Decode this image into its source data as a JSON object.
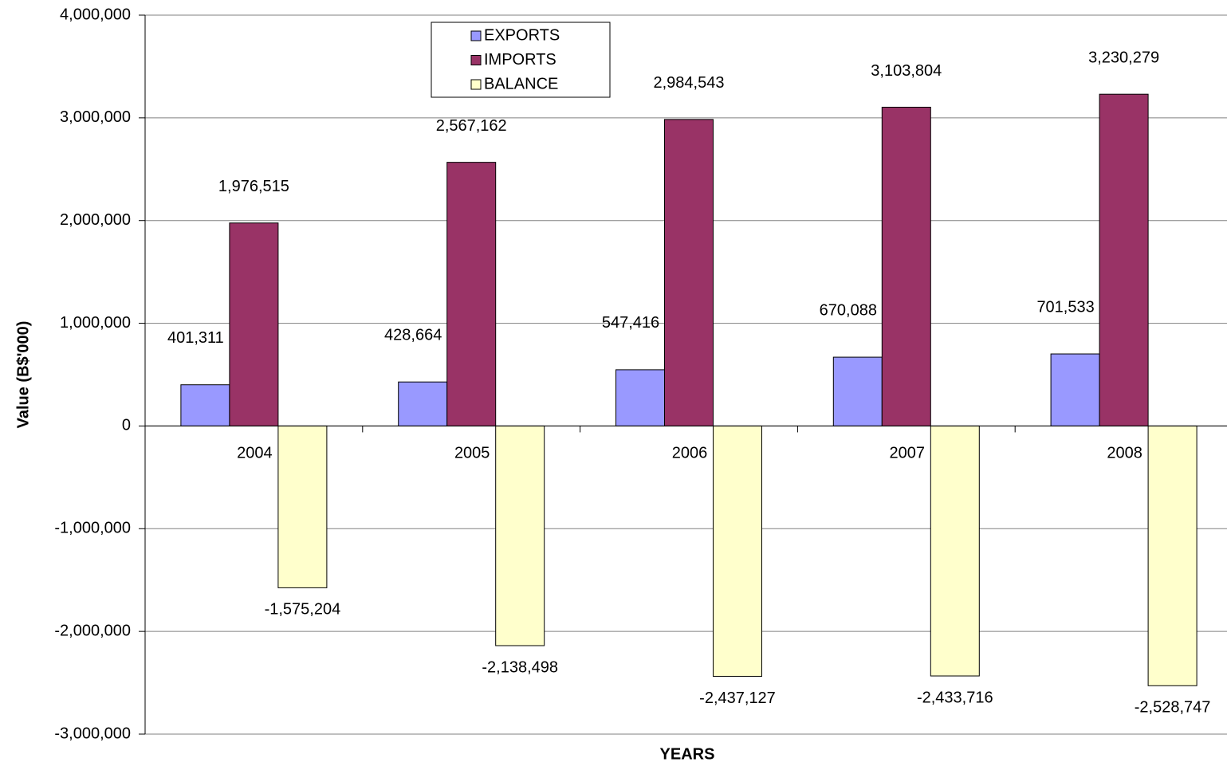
{
  "chart_data": {
    "type": "bar",
    "categories": [
      "2004",
      "2005",
      "2006",
      "2007",
      "2008"
    ],
    "series": [
      {
        "name": "EXPORTS",
        "color": "#9999ff",
        "values": [
          401311,
          428664,
          547416,
          670088,
          701533
        ],
        "value_labels": [
          "401,311",
          "428,664",
          "547,416",
          "670,088",
          "701,533"
        ]
      },
      {
        "name": "IMPORTS",
        "color": "#993366",
        "values": [
          1976515,
          2567162,
          2984543,
          3103804,
          3230279
        ],
        "value_labels": [
          "1,976,515",
          "2,567,162",
          "2,984,543",
          "3,103,804",
          "3,230,279"
        ]
      },
      {
        "name": "BALANCE",
        "color": "#ffffcc",
        "values": [
          -1575204,
          -2138498,
          -2437127,
          -2433716,
          -2528747
        ],
        "value_labels": [
          "-1,575,204",
          "-2,138,498",
          "-2,437,127",
          "-2,433,716",
          "-2,528,747"
        ]
      }
    ],
    "xlabel": "YEARS",
    "ylabel": "Value (B$'000)",
    "ylim": [
      -3000000,
      4000000
    ],
    "yticks": [
      {
        "value": -3000000,
        "label": "-3,000,000"
      },
      {
        "value": -2000000,
        "label": "-2,000,000"
      },
      {
        "value": -1000000,
        "label": "-1,000,000"
      },
      0,
      {
        "value": 1000000,
        "label": "1,000,000"
      },
      {
        "value": 2000000,
        "label": "2,000,000"
      },
      {
        "value": 3000000,
        "label": "3,000,000"
      },
      {
        "value": 4000000,
        "label": "4,000,000"
      }
    ],
    "grid": true,
    "legend": "top"
  }
}
